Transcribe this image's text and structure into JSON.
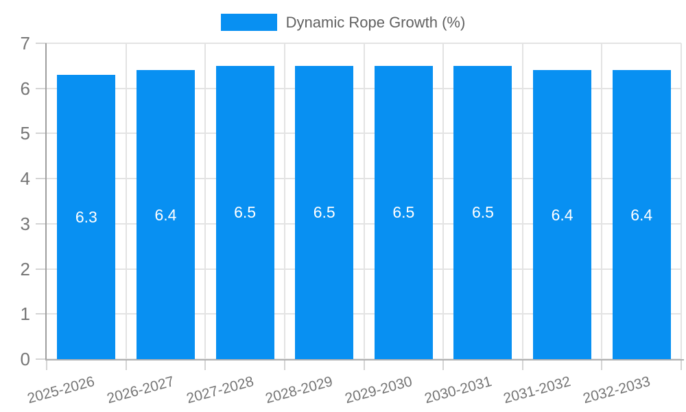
{
  "legend": {
    "label": "Dynamic Rope Growth (%)"
  },
  "chart_data": {
    "type": "bar",
    "title": "Dynamic Rope Growth (%)",
    "categories": [
      "2025-2026",
      "2026-2027",
      "2027-2028",
      "2028-2029",
      "2029-2030",
      "2030-2031",
      "2031-2032",
      "2032-2033"
    ],
    "values": [
      6.3,
      6.4,
      6.5,
      6.5,
      6.5,
      6.5,
      6.4,
      6.4
    ],
    "value_labels": [
      "6.3",
      "6.4",
      "6.5",
      "6.5",
      "6.5",
      "6.5",
      "6.4",
      "6.4"
    ],
    "xlabel": "",
    "ylabel": "",
    "ylim": [
      0,
      7
    ],
    "yticks": [
      0,
      1,
      2,
      3,
      4,
      5,
      6,
      7
    ],
    "grid": true,
    "legend_position": "top-center",
    "colors": {
      "bar": "#0890f2",
      "value_label": "#ffffff",
      "gridline": "#e3e3e3",
      "tick": "#d4d4d4",
      "axis_line_y": "#9e9e9e",
      "axis_line_x": "#b0b0b0",
      "axis_text": "#757575",
      "legend_text": "#616161",
      "background": "#ffffff"
    }
  }
}
